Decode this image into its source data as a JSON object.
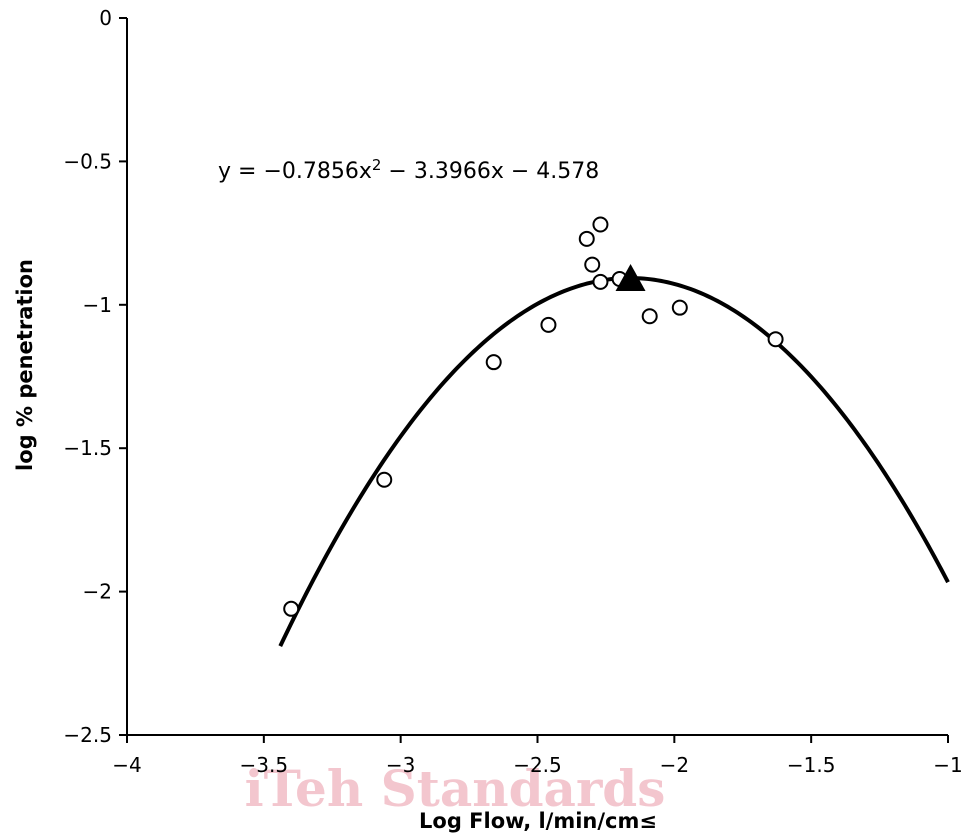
{
  "chart_data": {
    "type": "scatter",
    "xlabel": "Log Flow, l/min/cm≤",
    "ylabel": "log % penetration",
    "xlim": [
      -4,
      -1
    ],
    "ylim": [
      -2.5,
      0
    ],
    "xticks": [
      -4,
      -3.5,
      -3,
      -2.5,
      -2,
      -1.5,
      -1
    ],
    "yticks": [
      0,
      -0.5,
      -1,
      -1.5,
      -2,
      -2.5
    ],
    "xtick_labels": [
      "−4",
      "−3.5",
      "−3",
      "−2.5",
      "−2",
      "−1.5",
      "−1"
    ],
    "ytick_labels": [
      "0",
      "−0.5",
      "−1",
      "−1.5",
      "−2",
      "−2.5"
    ],
    "grid": false,
    "annotation": {
      "equation_prefix": "y = −0.7856x",
      "equation_exponent": "2",
      "equation_suffix": " − 3.3966x − 4.578"
    },
    "fit": {
      "type": "quadratic",
      "coefficients": [
        -0.7856,
        -3.3966,
        -4.578
      ],
      "x_range": [
        -3.44,
        -1.0
      ]
    },
    "series": [
      {
        "marker": "open-circle",
        "points": [
          [
            -3.4,
            -2.06
          ],
          [
            -3.06,
            -1.61
          ],
          [
            -2.66,
            -1.2
          ],
          [
            -2.46,
            -1.07
          ],
          [
            -2.32,
            -0.77
          ],
          [
            -2.3,
            -0.86
          ],
          [
            -2.27,
            -0.72
          ],
          [
            -2.27,
            -0.92
          ],
          [
            -2.2,
            -0.91
          ],
          [
            -2.09,
            -1.04
          ],
          [
            -1.98,
            -1.01
          ],
          [
            -1.63,
            -1.12
          ]
        ]
      },
      {
        "marker": "filled-triangle",
        "points": [
          [
            -2.16,
            -0.91
          ]
        ]
      }
    ]
  },
  "watermark": "iTeh Standards"
}
